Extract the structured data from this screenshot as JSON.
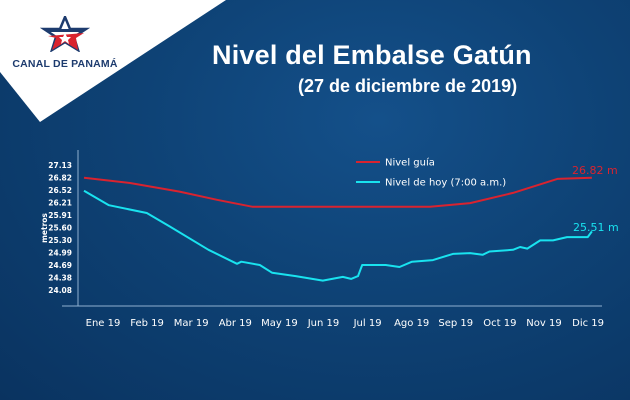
{
  "header": {
    "title": "Nivel del Embalse Gatún",
    "subtitle": "(27 de diciembre de 2019)",
    "logo_text": "CANAL DE PANAMÁ"
  },
  "colors": {
    "background": "#0e4275",
    "guide": "#d9232f",
    "today": "#19e3ef",
    "logo_blue": "#1d3b6e",
    "logo_red": "#d9232f"
  },
  "chart_data": {
    "type": "line",
    "ylabel": "metros",
    "xlabel": "",
    "y_ticks": [
      "27.13",
      "26.82",
      "26.52",
      "26.21",
      "25.91",
      "25.60",
      "25.30",
      "24.99",
      "24.69",
      "24.38",
      "24.08"
    ],
    "ylim": [
      24.08,
      27.13
    ],
    "x_ticks": [
      "Ene 19",
      "Feb 19",
      "Mar 19",
      "Abr 19",
      "May 19",
      "Jun 19",
      "Jul 19",
      "Ago 19",
      "Sep 19",
      "Oct 19",
      "Nov 19",
      "Dic 19"
    ],
    "grid": false,
    "legend_position": "top-right",
    "series": [
      {
        "name": "Nivel guía",
        "color": "#d9232f",
        "end_label": "26.82 m",
        "points": [
          [
            "2019-01-01",
            26.82
          ],
          [
            "2019-02-03",
            26.69
          ],
          [
            "2019-03-08",
            26.48
          ],
          [
            "2019-04-04",
            26.28
          ],
          [
            "2019-04-29",
            26.11
          ],
          [
            "2019-09-03",
            26.11
          ],
          [
            "2019-10-01",
            26.2
          ],
          [
            "2019-11-01",
            26.45
          ],
          [
            "2019-12-02",
            26.79
          ],
          [
            "2019-12-27",
            26.82
          ]
        ]
      },
      {
        "name": "Nivel de hoy (7:00 a.m.)",
        "color": "#19e3ef",
        "end_label": "25.51 m",
        "points": [
          [
            "2019-01-01",
            26.5
          ],
          [
            "2019-01-19",
            26.15
          ],
          [
            "2019-02-14",
            25.96
          ],
          [
            "2019-03-01",
            25.63
          ],
          [
            "2019-03-29",
            25.06
          ],
          [
            "2019-04-18",
            24.72
          ],
          [
            "2019-04-21",
            24.77
          ],
          [
            "2019-05-04",
            24.69
          ],
          [
            "2019-05-13",
            24.5
          ],
          [
            "2019-05-30",
            24.42
          ],
          [
            "2019-06-18",
            24.31
          ],
          [
            "2019-07-02",
            24.4
          ],
          [
            "2019-07-08",
            24.35
          ],
          [
            "2019-07-13",
            24.42
          ],
          [
            "2019-07-16",
            24.69
          ],
          [
            "2019-08-02",
            24.69
          ],
          [
            "2019-08-12",
            24.64
          ],
          [
            "2019-08-21",
            24.77
          ],
          [
            "2019-09-05",
            24.81
          ],
          [
            "2019-09-19",
            24.96
          ],
          [
            "2019-10-01",
            24.98
          ],
          [
            "2019-10-10",
            24.94
          ],
          [
            "2019-10-15",
            25.02
          ],
          [
            "2019-11-01",
            25.06
          ],
          [
            "2019-11-06",
            25.13
          ],
          [
            "2019-11-11",
            25.09
          ],
          [
            "2019-11-20",
            25.29
          ],
          [
            "2019-11-29",
            25.29
          ],
          [
            "2019-12-09",
            25.37
          ],
          [
            "2019-12-24",
            25.37
          ],
          [
            "2019-12-27",
            25.51
          ]
        ]
      }
    ]
  }
}
